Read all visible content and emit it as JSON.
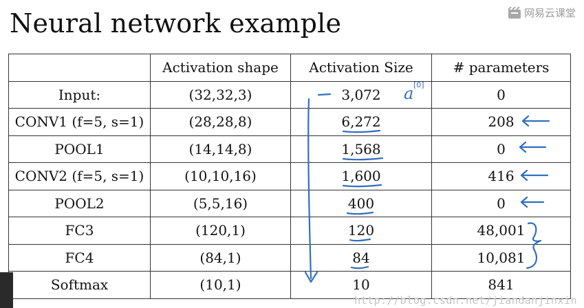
{
  "title": "Neural network example",
  "brand": {
    "icon": "video-slate-icon",
    "label": "网易云课堂"
  },
  "table": {
    "headers": [
      "",
      "Activation shape",
      "Activation Size",
      "# parameters"
    ],
    "rows": [
      {
        "layer": "Input:",
        "shape": "(32,32,3)",
        "size": "3,072",
        "params": "0"
      },
      {
        "layer": "CONV1 (f=5, s=1)",
        "shape": "(28,28,8)",
        "size": "6,272",
        "params": "208"
      },
      {
        "layer": "POOL1",
        "shape": "(14,14,8)",
        "size": "1,568",
        "params": "0"
      },
      {
        "layer": "CONV2  (f=5, s=1)",
        "shape": "(10,10,16)",
        "size": "1,600",
        "params": "416"
      },
      {
        "layer": "POOL2",
        "shape": "(5,5,16)",
        "size": "400",
        "params": "0"
      },
      {
        "layer": "FC3",
        "shape": "(120,1)",
        "size": "120",
        "params": "48,001"
      },
      {
        "layer": "FC4",
        "shape": "(84,1)",
        "size": "84",
        "params": "10,081"
      },
      {
        "layer": "Softmax",
        "shape": "(10,1)",
        "size": "10",
        "params": "841"
      }
    ]
  },
  "annotations": {
    "a0_label": "a",
    "a0_superscript": "[0]",
    "ink_color": "#2f6fc0"
  },
  "watermark": "http://blog.csdn.net/jiandanjinxin"
}
